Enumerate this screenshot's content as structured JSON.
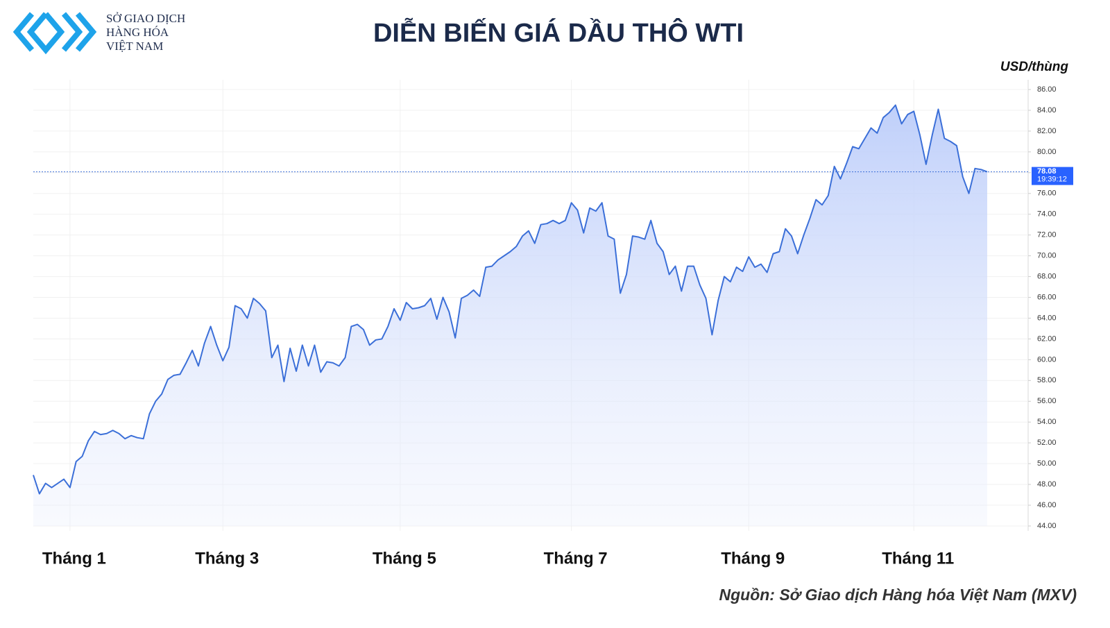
{
  "chart_data": {
    "type": "area-line",
    "title": "DIỄN BIẾN GIÁ DẦU THÔ WTI",
    "logo_lines": [
      "SỞ GIAO DỊCH",
      "HÀNG HÓA",
      "VIỆT NAM"
    ],
    "y_axis_label": "USD/thùng",
    "source": "Nguồn: Sở Giao dịch Hàng hóa Việt Nam (MXV)",
    "color": "#3b6fd8",
    "grid": true,
    "last_price": {
      "value": 78.08,
      "time": "19:39:12"
    },
    "ylim": [
      44,
      86
    ],
    "yticks": [
      {
        "value": 44,
        "label": "44.00"
      },
      {
        "value": 46,
        "label": "46.00"
      },
      {
        "value": 48,
        "label": "48.00"
      },
      {
        "value": 50,
        "label": "50.00"
      },
      {
        "value": 52,
        "label": "52.00"
      },
      {
        "value": 54,
        "label": "54.00"
      },
      {
        "value": 56,
        "label": "56.00"
      },
      {
        "value": 58,
        "label": "58.00"
      },
      {
        "value": 60,
        "label": "60.00"
      },
      {
        "value": 62,
        "label": "62.00"
      },
      {
        "value": 64,
        "label": "64.00"
      },
      {
        "value": 66,
        "label": "66.00"
      },
      {
        "value": 68,
        "label": "68.00"
      },
      {
        "value": 70,
        "label": "70.00"
      },
      {
        "value": 72,
        "label": "72.00"
      },
      {
        "value": 74,
        "label": "74.00"
      },
      {
        "value": 76,
        "label": "76.00"
      },
      {
        "value": 78,
        "label": "78.00"
      },
      {
        "value": 80,
        "label": "80.00"
      },
      {
        "value": 82,
        "label": "82.00"
      },
      {
        "value": 84,
        "label": "84.00"
      },
      {
        "value": 86,
        "label": "86.00"
      }
    ],
    "categories": [
      null,
      null,
      null,
      null,
      null,
      null,
      "Tháng 1",
      null,
      null,
      null,
      null,
      null,
      null,
      null,
      null,
      null,
      null,
      null,
      null,
      null,
      null,
      null,
      null,
      null,
      null,
      null,
      null,
      null,
      null,
      null,
      null,
      "Tháng 3",
      null,
      null,
      null,
      null,
      null,
      null,
      null,
      null,
      null,
      null,
      null,
      null,
      null,
      null,
      null,
      null,
      null,
      null,
      null,
      null,
      null,
      null,
      null,
      null,
      null,
      null,
      null,
      null,
      "Tháng 5",
      null,
      null,
      null,
      null,
      null,
      null,
      null,
      null,
      null,
      null,
      null,
      null,
      null,
      null,
      null,
      null,
      null,
      null,
      null,
      null,
      null,
      null,
      null,
      null,
      null,
      null,
      null,
      "Tháng 7",
      null,
      null,
      null,
      null,
      null,
      null,
      null,
      null,
      null,
      null,
      null,
      null,
      null,
      null,
      null,
      null,
      null,
      null,
      null,
      null,
      null,
      null,
      null,
      null,
      null,
      null,
      null,
      null,
      "Tháng 9",
      null,
      null,
      null,
      null,
      null,
      null,
      null,
      null,
      null,
      null,
      null,
      null,
      null,
      null,
      null,
      null,
      null,
      null,
      null,
      null,
      null,
      null,
      null,
      null,
      null,
      null,
      "Tháng 11",
      null,
      null,
      null,
      null,
      null,
      null,
      null,
      null,
      null,
      null,
      null,
      null
    ],
    "values": [
      48.9,
      47.1,
      48.1,
      47.7,
      48.1,
      48.5,
      47.7,
      50.2,
      50.7,
      52.2,
      53.1,
      52.8,
      52.9,
      53.2,
      52.9,
      52.4,
      52.7,
      52.5,
      52.4,
      54.8,
      56.0,
      56.7,
      58.1,
      58.5,
      58.6,
      59.7,
      60.9,
      59.4,
      61.6,
      63.2,
      61.4,
      59.9,
      61.2,
      65.2,
      64.9,
      64.0,
      65.9,
      65.4,
      64.7,
      60.2,
      61.4,
      57.9,
      61.1,
      58.9,
      61.4,
      59.4,
      61.4,
      58.8,
      59.8,
      59.7,
      59.4,
      60.2,
      63.2,
      63.4,
      62.9,
      61.4,
      61.9,
      62.0,
      63.2,
      64.9,
      63.8,
      65.5,
      64.9,
      65.0,
      65.2,
      65.9,
      63.9,
      66.0,
      64.6,
      62.1,
      65.9,
      66.2,
      66.7,
      66.1,
      68.9,
      69.0,
      69.6,
      70.0,
      70.4,
      70.9,
      71.9,
      72.4,
      71.2,
      73.0,
      73.1,
      73.4,
      73.1,
      73.4,
      75.1,
      74.4,
      72.2,
      74.6,
      74.3,
      75.1,
      71.9,
      71.6,
      66.4,
      68.2,
      71.9,
      71.8,
      71.6,
      73.4,
      71.2,
      70.4,
      68.2,
      69.0,
      66.6,
      69.0,
      69.0,
      67.2,
      65.9,
      62.4,
      65.7,
      68.0,
      67.5,
      68.9,
      68.5,
      69.9,
      68.9,
      69.2,
      68.4,
      70.2,
      70.4,
      72.6,
      71.9,
      70.2,
      72.0,
      73.6,
      75.4,
      74.9,
      75.8,
      78.6,
      77.4,
      78.9,
      80.5,
      80.3,
      81.3,
      82.3,
      81.8,
      83.3,
      83.8,
      84.5,
      82.7,
      83.6,
      83.9,
      81.6,
      78.8,
      81.6,
      84.1,
      81.3,
      81.0,
      80.6,
      77.6,
      76.0,
      78.4,
      78.3,
      78.08
    ]
  }
}
